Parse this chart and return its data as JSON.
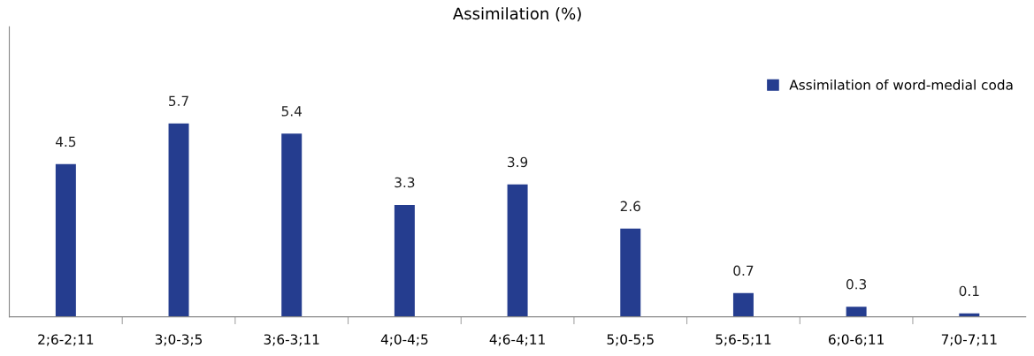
{
  "chart_data": {
    "type": "bar",
    "title": "Assimilation (%)",
    "categories": [
      "2;6-2;11",
      "3;0-3;5",
      "3;6-3;11",
      "4;0-4;5",
      "4;6-4;11",
      "5;0-5;5",
      "5;6-5;11",
      "6;0-6;11",
      "7;0-7;11"
    ],
    "series": [
      {
        "name": "Assimilation of word-medial coda",
        "color": "#253d8f",
        "values": [
          4.5,
          5.7,
          5.4,
          3.3,
          3.9,
          2.6,
          0.7,
          0.3,
          0.1
        ]
      }
    ],
    "data_labels": true,
    "legend": "top right",
    "grid": false,
    "tick_labels": "x"
  }
}
